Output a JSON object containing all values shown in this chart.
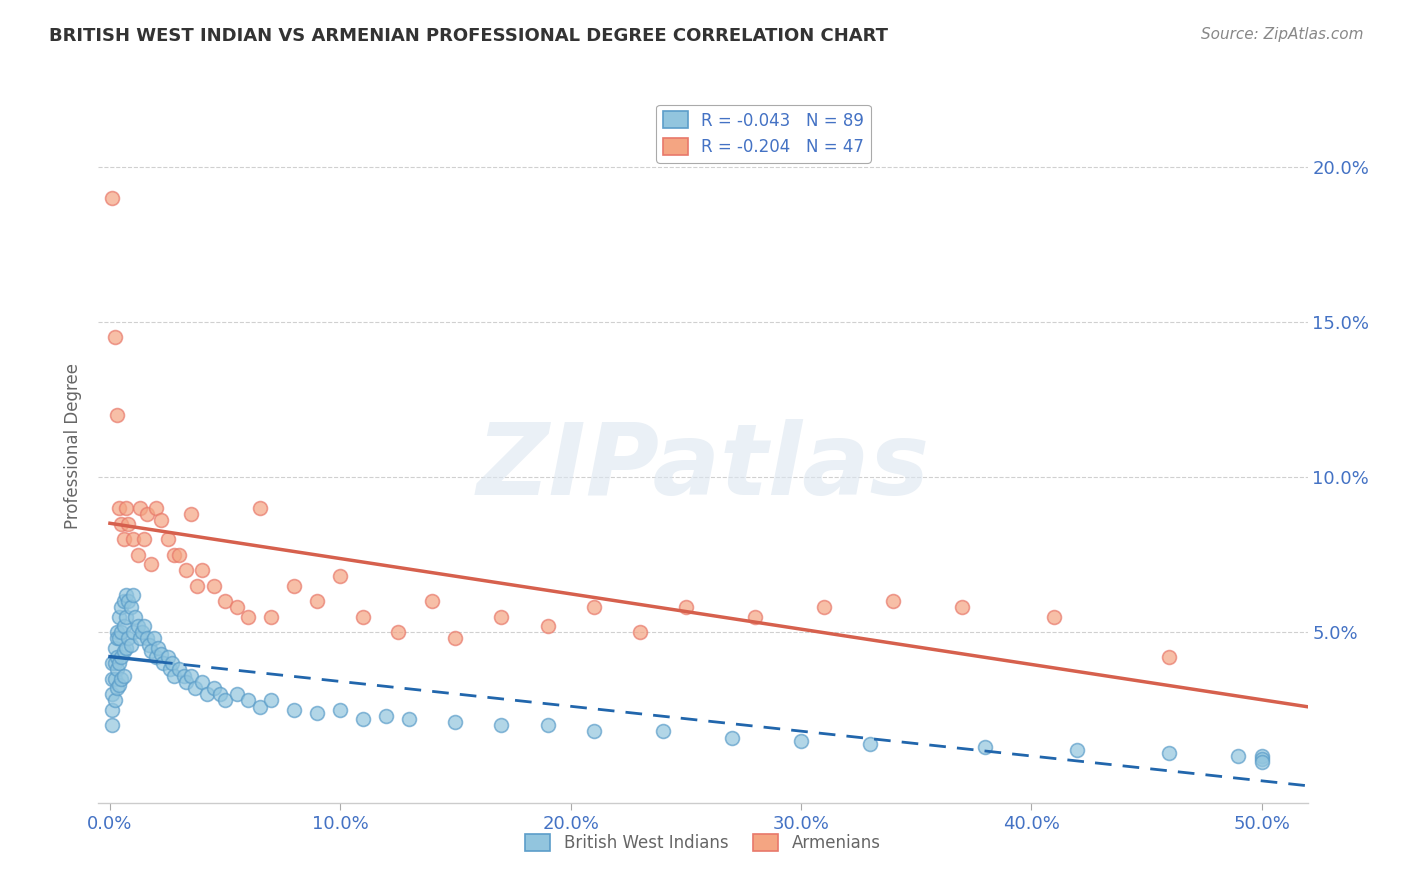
{
  "title": "BRITISH WEST INDIAN VS ARMENIAN PROFESSIONAL DEGREE CORRELATION CHART",
  "source": "Source: ZipAtlas.com",
  "ylabel_label": "Professional Degree",
  "x_tick_labels": [
    "0.0%",
    "10.0%",
    "20.0%",
    "30.0%",
    "40.0%",
    "50.0%"
  ],
  "x_tick_values": [
    0.0,
    0.1,
    0.2,
    0.3,
    0.4,
    0.5
  ],
  "y_tick_labels_right": [
    "5.0%",
    "10.0%",
    "15.0%",
    "20.0%"
  ],
  "y_tick_values": [
    0.05,
    0.1,
    0.15,
    0.2
  ],
  "xlim": [
    -0.005,
    0.52
  ],
  "ylim": [
    -0.005,
    0.225
  ],
  "legend_entry1": "R = -0.043   N = 89",
  "legend_entry2": "R = -0.204   N = 47",
  "legend_label1": "British West Indians",
  "legend_label2": "Armenians",
  "blue_color": "#92c5de",
  "pink_color": "#f4a582",
  "blue_scatter_edge": "#5b9dc9",
  "pink_scatter_edge": "#e8786a",
  "blue_line_color": "#2166ac",
  "pink_line_color": "#d6604d",
  "watermark_text": "ZIPatlas",
  "blue_scatter_x": [
    0.001,
    0.001,
    0.001,
    0.001,
    0.001,
    0.002,
    0.002,
    0.002,
    0.002,
    0.003,
    0.003,
    0.003,
    0.003,
    0.003,
    0.004,
    0.004,
    0.004,
    0.004,
    0.005,
    0.005,
    0.005,
    0.005,
    0.006,
    0.006,
    0.006,
    0.006,
    0.007,
    0.007,
    0.007,
    0.008,
    0.008,
    0.009,
    0.009,
    0.01,
    0.01,
    0.011,
    0.012,
    0.013,
    0.014,
    0.015,
    0.016,
    0.017,
    0.018,
    0.019,
    0.02,
    0.021,
    0.022,
    0.023,
    0.025,
    0.026,
    0.027,
    0.028,
    0.03,
    0.032,
    0.033,
    0.035,
    0.037,
    0.04,
    0.042,
    0.045,
    0.048,
    0.05,
    0.055,
    0.06,
    0.065,
    0.07,
    0.08,
    0.09,
    0.1,
    0.11,
    0.12,
    0.13,
    0.15,
    0.17,
    0.19,
    0.21,
    0.24,
    0.27,
    0.3,
    0.33,
    0.38,
    0.42,
    0.46,
    0.49,
    0.5,
    0.5,
    0.5
  ],
  "blue_scatter_y": [
    0.04,
    0.035,
    0.03,
    0.025,
    0.02,
    0.045,
    0.04,
    0.035,
    0.028,
    0.05,
    0.048,
    0.042,
    0.038,
    0.032,
    0.055,
    0.048,
    0.04,
    0.033,
    0.058,
    0.05,
    0.042,
    0.035,
    0.06,
    0.052,
    0.044,
    0.036,
    0.062,
    0.055,
    0.045,
    0.06,
    0.048,
    0.058,
    0.046,
    0.062,
    0.05,
    0.055,
    0.052,
    0.048,
    0.05,
    0.052,
    0.048,
    0.046,
    0.044,
    0.048,
    0.042,
    0.045,
    0.043,
    0.04,
    0.042,
    0.038,
    0.04,
    0.036,
    0.038,
    0.036,
    0.034,
    0.036,
    0.032,
    0.034,
    0.03,
    0.032,
    0.03,
    0.028,
    0.03,
    0.028,
    0.026,
    0.028,
    0.025,
    0.024,
    0.025,
    0.022,
    0.023,
    0.022,
    0.021,
    0.02,
    0.02,
    0.018,
    0.018,
    0.016,
    0.015,
    0.014,
    0.013,
    0.012,
    0.011,
    0.01,
    0.01,
    0.009,
    0.008
  ],
  "pink_scatter_x": [
    0.001,
    0.002,
    0.003,
    0.004,
    0.005,
    0.006,
    0.007,
    0.008,
    0.01,
    0.012,
    0.013,
    0.015,
    0.016,
    0.018,
    0.02,
    0.022,
    0.025,
    0.028,
    0.03,
    0.033,
    0.035,
    0.038,
    0.04,
    0.045,
    0.05,
    0.055,
    0.06,
    0.065,
    0.07,
    0.08,
    0.09,
    0.1,
    0.11,
    0.125,
    0.14,
    0.15,
    0.17,
    0.19,
    0.21,
    0.23,
    0.25,
    0.28,
    0.31,
    0.34,
    0.37,
    0.41,
    0.46
  ],
  "pink_scatter_y": [
    0.19,
    0.145,
    0.12,
    0.09,
    0.085,
    0.08,
    0.09,
    0.085,
    0.08,
    0.075,
    0.09,
    0.08,
    0.088,
    0.072,
    0.09,
    0.086,
    0.08,
    0.075,
    0.075,
    0.07,
    0.088,
    0.065,
    0.07,
    0.065,
    0.06,
    0.058,
    0.055,
    0.09,
    0.055,
    0.065,
    0.06,
    0.068,
    0.055,
    0.05,
    0.06,
    0.048,
    0.055,
    0.052,
    0.058,
    0.05,
    0.058,
    0.055,
    0.058,
    0.06,
    0.058,
    0.055,
    0.042
  ],
  "background_color": "#ffffff",
  "grid_color": "#d0d0d0",
  "title_color": "#333333",
  "axis_label_color": "#666666",
  "tick_label_color": "#4472c4",
  "source_color": "#888888"
}
